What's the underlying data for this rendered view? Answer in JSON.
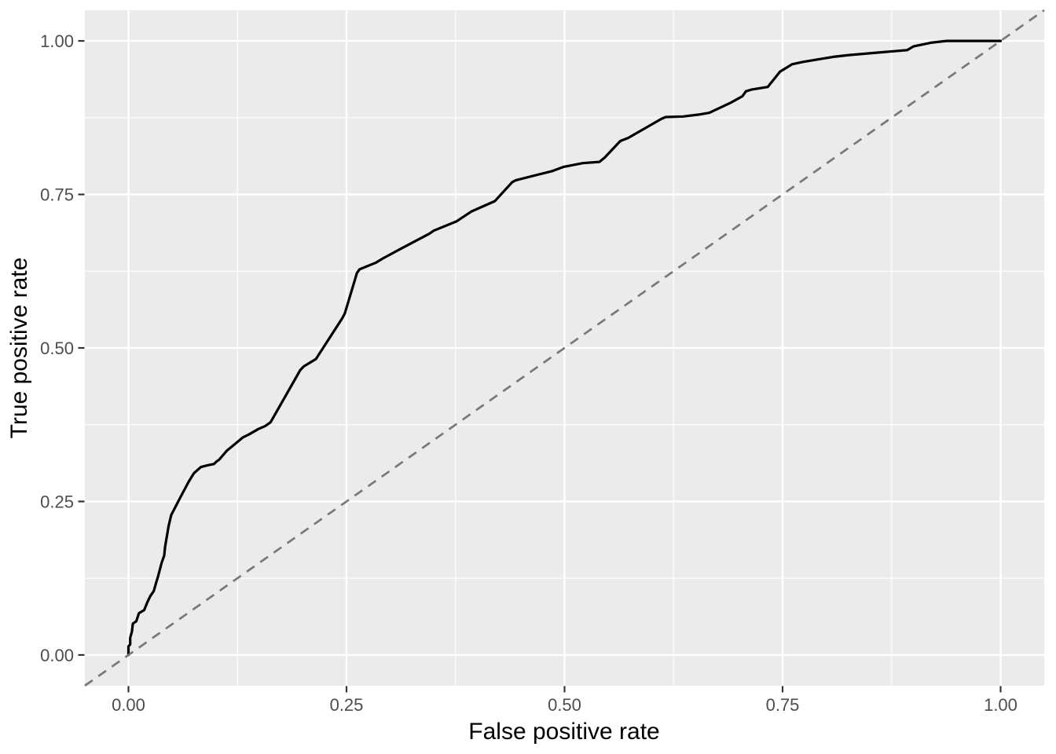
{
  "chart_data": {
    "type": "line",
    "title": "",
    "xlabel": "False positive rate",
    "ylabel": "True positive rate",
    "xlim": [
      0,
      1
    ],
    "ylim": [
      0,
      1
    ],
    "expand_frac": 0.05,
    "grid": true,
    "legend_position": "none",
    "x_tick_values": [
      0,
      0.25,
      0.5,
      0.75,
      1
    ],
    "x_tick_labels": [
      "0.00",
      "0.25",
      "0.50",
      "0.75",
      "1.00"
    ],
    "y_tick_values": [
      0,
      0.25,
      0.5,
      0.75,
      1
    ],
    "y_tick_labels": [
      "0.00",
      "0.25",
      "0.50",
      "0.75",
      "1.00"
    ],
    "x_minor_values": [
      0.125,
      0.375,
      0.625,
      0.875
    ],
    "y_minor_values": [
      0.125,
      0.375,
      0.625,
      0.875
    ],
    "panel_bg_color": "#EBEBEB",
    "grid_color": "#FFFFFF",
    "tick_mark_color": "#333333",
    "tick_label_color": "#4D4D4D",
    "axis_title_color": "#000000",
    "series": [
      {
        "name": "roc_curve",
        "style": "solid",
        "color": "#000000",
        "width": 3.2,
        "points": [
          [
            0.0,
            0.0
          ],
          [
            0.0,
            0.014
          ],
          [
            0.002,
            0.017
          ],
          [
            0.002,
            0.028
          ],
          [
            0.004,
            0.038
          ],
          [
            0.005,
            0.051
          ],
          [
            0.009,
            0.055
          ],
          [
            0.012,
            0.068
          ],
          [
            0.018,
            0.073
          ],
          [
            0.022,
            0.087
          ],
          [
            0.025,
            0.096
          ],
          [
            0.029,
            0.104
          ],
          [
            0.032,
            0.119
          ],
          [
            0.034,
            0.128
          ],
          [
            0.038,
            0.15
          ],
          [
            0.041,
            0.162
          ],
          [
            0.042,
            0.176
          ],
          [
            0.046,
            0.21
          ],
          [
            0.049,
            0.228
          ],
          [
            0.052,
            0.236
          ],
          [
            0.06,
            0.258
          ],
          [
            0.069,
            0.282
          ],
          [
            0.075,
            0.296
          ],
          [
            0.083,
            0.306
          ],
          [
            0.091,
            0.309
          ],
          [
            0.098,
            0.311
          ],
          [
            0.101,
            0.315
          ],
          [
            0.104,
            0.318
          ],
          [
            0.113,
            0.333
          ],
          [
            0.12,
            0.341
          ],
          [
            0.131,
            0.354
          ],
          [
            0.138,
            0.359
          ],
          [
            0.149,
            0.368
          ],
          [
            0.157,
            0.373
          ],
          [
            0.163,
            0.379
          ],
          [
            0.197,
            0.464
          ],
          [
            0.201,
            0.47
          ],
          [
            0.215,
            0.482
          ],
          [
            0.245,
            0.548
          ],
          [
            0.248,
            0.556
          ],
          [
            0.262,
            0.622
          ],
          [
            0.265,
            0.628
          ],
          [
            0.284,
            0.639
          ],
          [
            0.292,
            0.646
          ],
          [
            0.313,
            0.662
          ],
          [
            0.345,
            0.686
          ],
          [
            0.35,
            0.691
          ],
          [
            0.376,
            0.706
          ],
          [
            0.393,
            0.722
          ],
          [
            0.42,
            0.739
          ],
          [
            0.422,
            0.742
          ],
          [
            0.44,
            0.77
          ],
          [
            0.444,
            0.773
          ],
          [
            0.469,
            0.782
          ],
          [
            0.486,
            0.788
          ],
          [
            0.499,
            0.795
          ],
          [
            0.521,
            0.801
          ],
          [
            0.54,
            0.803
          ],
          [
            0.546,
            0.81
          ],
          [
            0.564,
            0.837
          ],
          [
            0.573,
            0.842
          ],
          [
            0.611,
            0.873
          ],
          [
            0.616,
            0.876
          ],
          [
            0.636,
            0.877
          ],
          [
            0.654,
            0.88
          ],
          [
            0.666,
            0.883
          ],
          [
            0.69,
            0.899
          ],
          [
            0.704,
            0.91
          ],
          [
            0.708,
            0.918
          ],
          [
            0.715,
            0.921
          ],
          [
            0.733,
            0.925
          ],
          [
            0.747,
            0.95
          ],
          [
            0.761,
            0.962
          ],
          [
            0.774,
            0.966
          ],
          [
            0.808,
            0.974
          ],
          [
            0.826,
            0.977
          ],
          [
            0.86,
            0.981
          ],
          [
            0.893,
            0.985
          ],
          [
            0.9,
            0.991
          ],
          [
            0.92,
            0.997
          ],
          [
            0.938,
            1.0
          ],
          [
            1.0,
            1.0
          ]
        ]
      },
      {
        "name": "chance_diagonal",
        "style": "dashed",
        "color": "#787878",
        "width": 2.7,
        "dash": "12 9",
        "abline": {
          "slope": 1,
          "intercept": 0
        }
      }
    ]
  }
}
